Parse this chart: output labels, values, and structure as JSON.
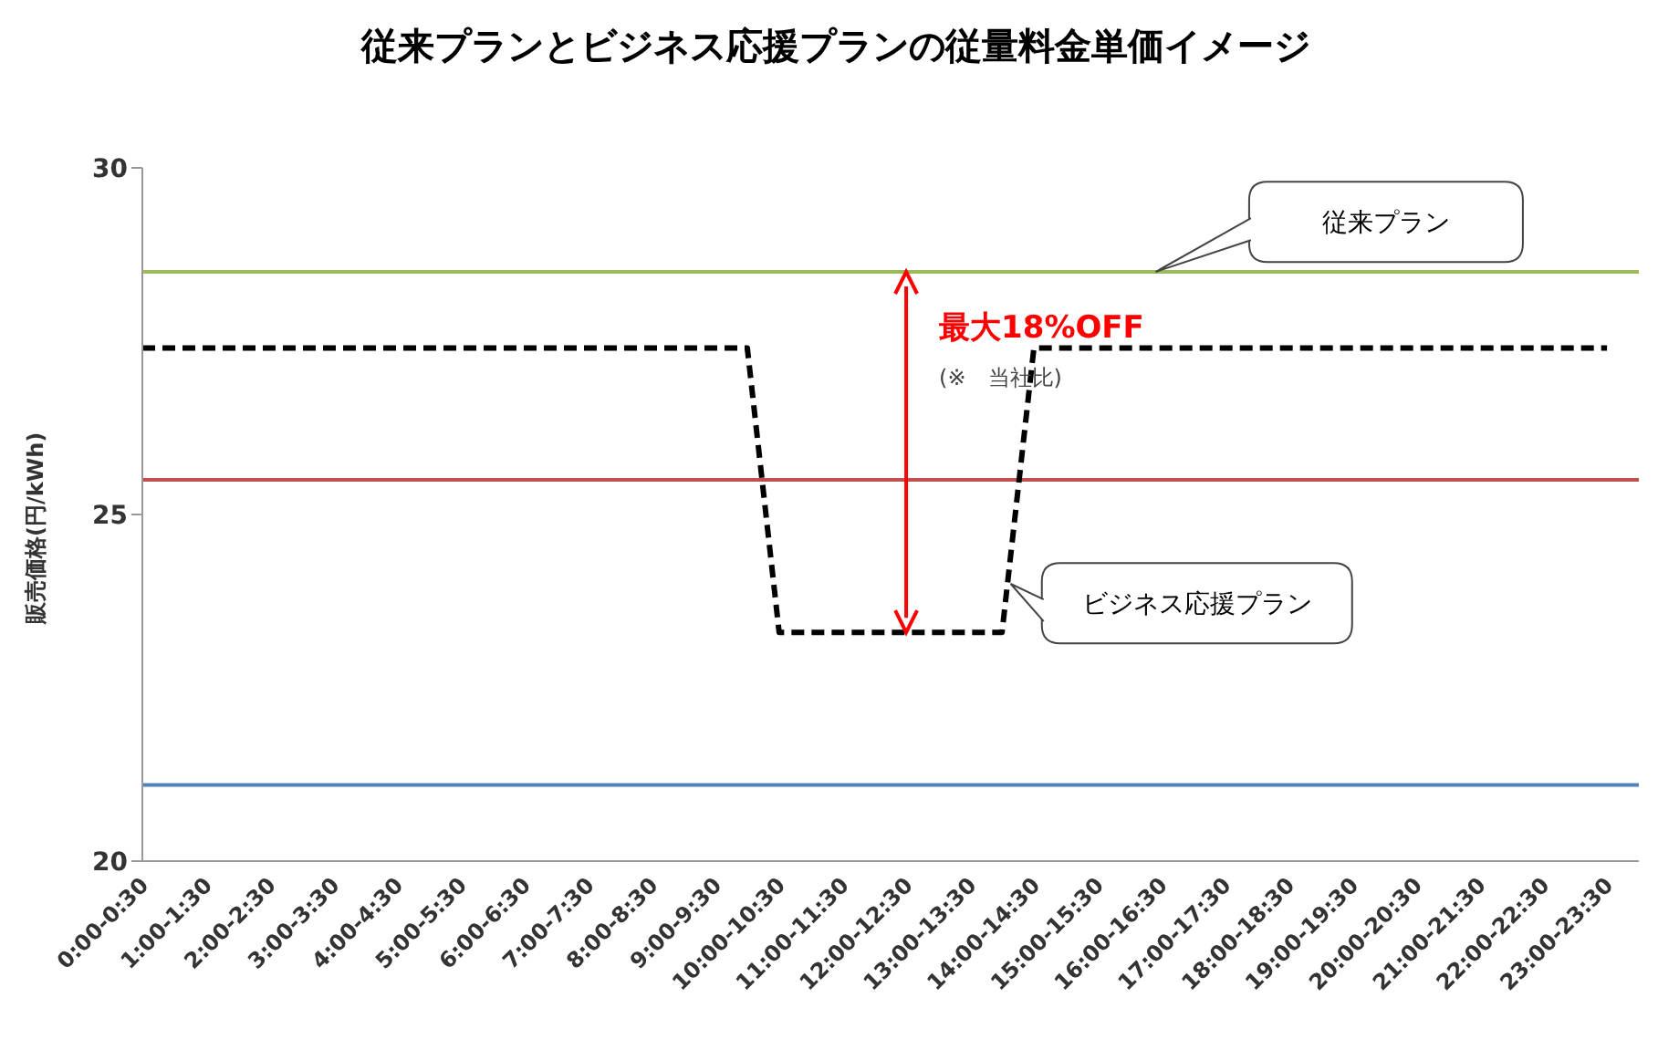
{
  "chart_data": {
    "type": "line",
    "title": "従来プランとビジネス応援プランの従量料金単価イメージ",
    "ylabel": "販売価格(円/kWh)",
    "categories": [
      "0:00-0:30",
      null,
      "1:00-1:30",
      null,
      "2:00-2:30",
      null,
      "3:00-3:30",
      null,
      "4:00-4:30",
      null,
      "5:00-5:30",
      null,
      "6:00-6:30",
      null,
      "7:00-7:30",
      null,
      "8:00-8:30",
      null,
      "9:00-9:30",
      null,
      "10:00-10:30",
      null,
      "11:00-11:30",
      null,
      "12:00-12:30",
      null,
      "13:00-13:30",
      null,
      "14:00-14:30",
      null,
      "15:00-15:30",
      null,
      "16:00-16:30",
      null,
      "17:00-17:30",
      null,
      "18:00-18:30",
      null,
      "19:00-19:30",
      null,
      "20:00-20:30",
      null,
      "21:00-21:30",
      null,
      "22:00-22:30",
      null,
      "23:00-23:30",
      null
    ],
    "series": [
      {
        "name": "従来プラン",
        "color": "#9bbb59",
        "line_style": "solid",
        "values": [
          28.5,
          28.5,
          28.5,
          28.5,
          28.5,
          28.5,
          28.5,
          28.5,
          28.5,
          28.5,
          28.5,
          28.5,
          28.5,
          28.5,
          28.5,
          28.5,
          28.5,
          28.5,
          28.5,
          28.5,
          28.5,
          28.5,
          28.5,
          28.5,
          28.5,
          28.5,
          28.5,
          28.5,
          28.5,
          28.5,
          28.5,
          28.5,
          28.5,
          28.5,
          28.5,
          28.5,
          28.5,
          28.5,
          28.5,
          28.5,
          28.5,
          28.5,
          28.5,
          28.5,
          28.5,
          28.5,
          28.5,
          28.5
        ]
      },
      {
        "color": "#c0504d",
        "line_style": "solid",
        "values": [
          25.5,
          25.5,
          25.5,
          25.5,
          25.5,
          25.5,
          25.5,
          25.5,
          25.5,
          25.5,
          25.5,
          25.5,
          25.5,
          25.5,
          25.5,
          25.5,
          25.5,
          25.5,
          25.5,
          25.5,
          25.5,
          25.5,
          25.5,
          25.5,
          25.5,
          25.5,
          25.5,
          25.5,
          25.5,
          25.5,
          25.5,
          25.5,
          25.5,
          25.5,
          25.5,
          25.5,
          25.5,
          25.5,
          25.5,
          25.5,
          25.5,
          25.5,
          25.5,
          25.5,
          25.5,
          25.5,
          25.5,
          25.5
        ]
      },
      {
        "color": "#4f81bd",
        "line_style": "solid",
        "values": [
          21.1,
          21.1,
          21.1,
          21.1,
          21.1,
          21.1,
          21.1,
          21.1,
          21.1,
          21.1,
          21.1,
          21.1,
          21.1,
          21.1,
          21.1,
          21.1,
          21.1,
          21.1,
          21.1,
          21.1,
          21.1,
          21.1,
          21.1,
          21.1,
          21.1,
          21.1,
          21.1,
          21.1,
          21.1,
          21.1,
          21.1,
          21.1,
          21.1,
          21.1,
          21.1,
          21.1,
          21.1,
          21.1,
          21.1,
          21.1,
          21.1,
          21.1,
          21.1,
          21.1,
          21.1,
          21.1,
          21.1,
          21.1
        ]
      },
      {
        "name": "ビジネス応援プラン",
        "color": "#000000",
        "line_style": "dashed",
        "values": [
          27.4,
          27.4,
          27.4,
          27.4,
          27.4,
          27.4,
          27.4,
          27.4,
          27.4,
          27.4,
          27.4,
          27.4,
          27.4,
          27.4,
          27.4,
          27.4,
          27.4,
          27.4,
          27.4,
          27.4,
          23.3,
          23.3,
          23.3,
          23.3,
          23.3,
          23.3,
          23.3,
          23.3,
          27.4,
          27.4,
          27.4,
          27.4,
          27.4,
          27.4,
          27.4,
          27.4,
          27.4,
          27.4,
          27.4,
          27.4,
          27.4,
          27.4,
          27.4,
          27.4,
          27.4,
          27.4,
          27.4,
          null
        ]
      }
    ],
    "ylim": [
      20,
      30
    ],
    "yticks": [
      20,
      25,
      30
    ],
    "marker": "none",
    "annotations": [
      "最大18%OFF",
      "(※　当社比)"
    ]
  }
}
